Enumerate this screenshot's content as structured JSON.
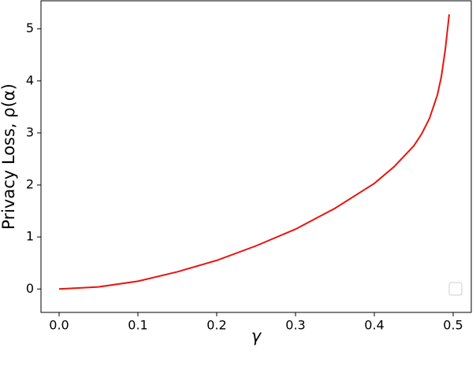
{
  "chart_data": {
    "type": "line",
    "xlabel": "γ",
    "ylabel": "Privacy Loss, ρ(α)",
    "x": [
      0,
      0.05,
      0.1,
      0.15,
      0.2,
      0.25,
      0.3,
      0.35,
      0.4,
      0.425,
      0.45,
      0.46,
      0.47,
      0.48,
      0.485,
      0.49,
      0.495
    ],
    "series": [
      {
        "color": "#e8140e",
        "values": [
          0,
          0.04,
          0.15,
          0.33,
          0.55,
          0.83,
          1.15,
          1.55,
          2.03,
          2.35,
          2.75,
          2.98,
          3.28,
          3.73,
          4.08,
          4.6,
          5.28
        ]
      }
    ],
    "xlim": [
      -0.023,
      0.523
    ],
    "ylim": [
      -0.45,
      5.54
    ],
    "xticks": [
      {
        "value": 0,
        "label": "0.0"
      },
      {
        "value": 0.1,
        "label": "0.1"
      },
      {
        "value": 0.2,
        "label": "0.2"
      },
      {
        "value": 0.3,
        "label": "0.3"
      },
      {
        "value": 0.4,
        "label": "0.4"
      },
      {
        "value": 0.5,
        "label": "0.5"
      }
    ],
    "yticks": [
      0,
      1,
      2,
      3,
      4,
      5
    ]
  }
}
